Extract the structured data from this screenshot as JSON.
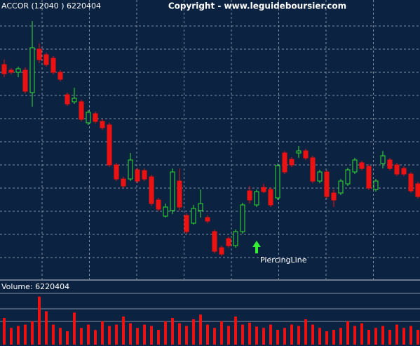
{
  "chart_data": {
    "type": "candlestick",
    "title": "ACCOR (12040 ) 6220404",
    "subtitle": "Copyright - www.leguideboursier.com",
    "volume_label": "Volume: 6220404",
    "annotation": "PiercingLine",
    "up_color": "#33dd33",
    "down_color": "#ee1111",
    "volume_color": "#ee1111",
    "ylim": [
      0,
      398
    ],
    "volume_ylim": [
      0,
      80
    ],
    "open": [
      306,
      298,
      295,
      298,
      266,
      328,
      320,
      315,
      295,
      263,
      253,
      253,
      223,
      236,
      225,
      220,
      163,
      143,
      143,
      156,
      155,
      146,
      113,
      90,
      98,
      140,
      91,
      80,
      98,
      88,
      68,
      45,
      58,
      48,
      68,
      126,
      106,
      131,
      128,
      116,
      180,
      171,
      180,
      183,
      173,
      140,
      153,
      123,
      123,
      136,
      153,
      166,
      161,
      128,
      165,
      170,
      163,
      158,
      150,
      136
    ],
    "high": [
      313,
      301,
      303,
      302,
      368,
      336,
      323,
      318,
      298,
      266,
      273,
      256,
      241,
      239,
      228,
      223,
      166,
      146,
      180,
      159,
      158,
      149,
      116,
      108,
      158,
      158,
      94,
      106,
      128,
      91,
      71,
      48,
      61,
      71,
      109,
      133,
      128,
      136,
      131,
      165,
      183,
      174,
      190,
      186,
      176,
      156,
      156,
      128,
      143,
      159,
      173,
      169,
      164,
      143,
      183,
      173,
      166,
      161,
      153,
      139
    ],
    "low": [
      288,
      292,
      288,
      265,
      246,
      308,
      303,
      292,
      282,
      247,
      250,
      225,
      220,
      222,
      213,
      160,
      140,
      130,
      140,
      137,
      140,
      105,
      97,
      88,
      93,
      98,
      65,
      78,
      88,
      80,
      37,
      33,
      45,
      45,
      65,
      108,
      103,
      123,
      103,
      113,
      150,
      160,
      173,
      170,
      137,
      137,
      115,
      103,
      120,
      133,
      150,
      155,
      127,
      125,
      158,
      155,
      147,
      147,
      123,
      115
    ],
    "close": [
      293,
      295,
      300,
      268,
      330,
      313,
      306,
      295,
      285,
      250,
      258,
      228,
      238,
      225,
      216,
      163,
      143,
      133,
      170,
      140,
      143,
      108,
      100,
      103,
      153,
      103,
      68,
      101,
      108,
      83,
      40,
      36,
      48,
      68,
      106,
      113,
      125,
      125,
      106,
      162,
      153,
      163,
      183,
      173,
      140,
      153,
      118,
      113,
      140,
      156,
      170,
      158,
      130,
      140,
      176,
      158,
      150,
      150,
      126,
      118
    ],
    "volume": [
      40,
      25,
      28,
      30,
      35,
      72,
      50,
      30,
      25,
      20,
      48,
      25,
      30,
      22,
      35,
      28,
      30,
      42,
      32,
      25,
      30,
      28,
      22,
      35,
      40,
      32,
      28,
      38,
      45,
      30,
      25,
      35,
      28,
      42,
      30,
      33,
      27,
      25,
      30,
      22,
      25,
      30,
      28,
      38,
      30,
      25,
      20,
      22,
      25,
      35,
      28,
      32,
      22,
      25,
      28,
      22,
      30,
      25,
      28,
      22
    ]
  }
}
